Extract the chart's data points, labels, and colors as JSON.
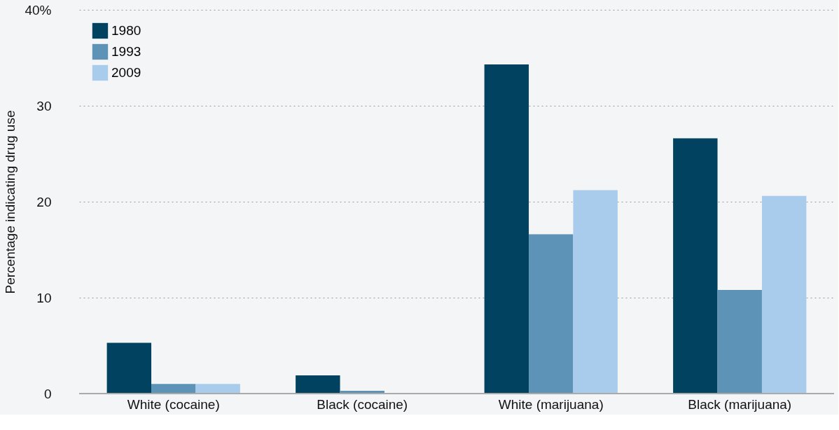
{
  "chart_data": {
    "type": "bar",
    "ylabel": "Percentage indicating drug use",
    "categories": [
      "White (cocaine)",
      "Black (cocaine)",
      "White (marijuana)",
      "Black (marijuana)"
    ],
    "series": [
      {
        "name": "1980",
        "color": "#00425f",
        "values": [
          5.3,
          1.9,
          34.3,
          26.6
        ]
      },
      {
        "name": "1993",
        "color": "#5d93b6",
        "values": [
          1.0,
          0.3,
          16.6,
          10.8
        ]
      },
      {
        "name": "2009",
        "color": "#a9ccec",
        "values": [
          1.0,
          null,
          21.2,
          20.6
        ]
      }
    ],
    "ylim": [
      0,
      40
    ],
    "yticks": [
      0,
      10,
      20,
      30,
      {
        "value": 40,
        "label": "40%"
      }
    ],
    "grid": "y",
    "legend": "top left"
  }
}
